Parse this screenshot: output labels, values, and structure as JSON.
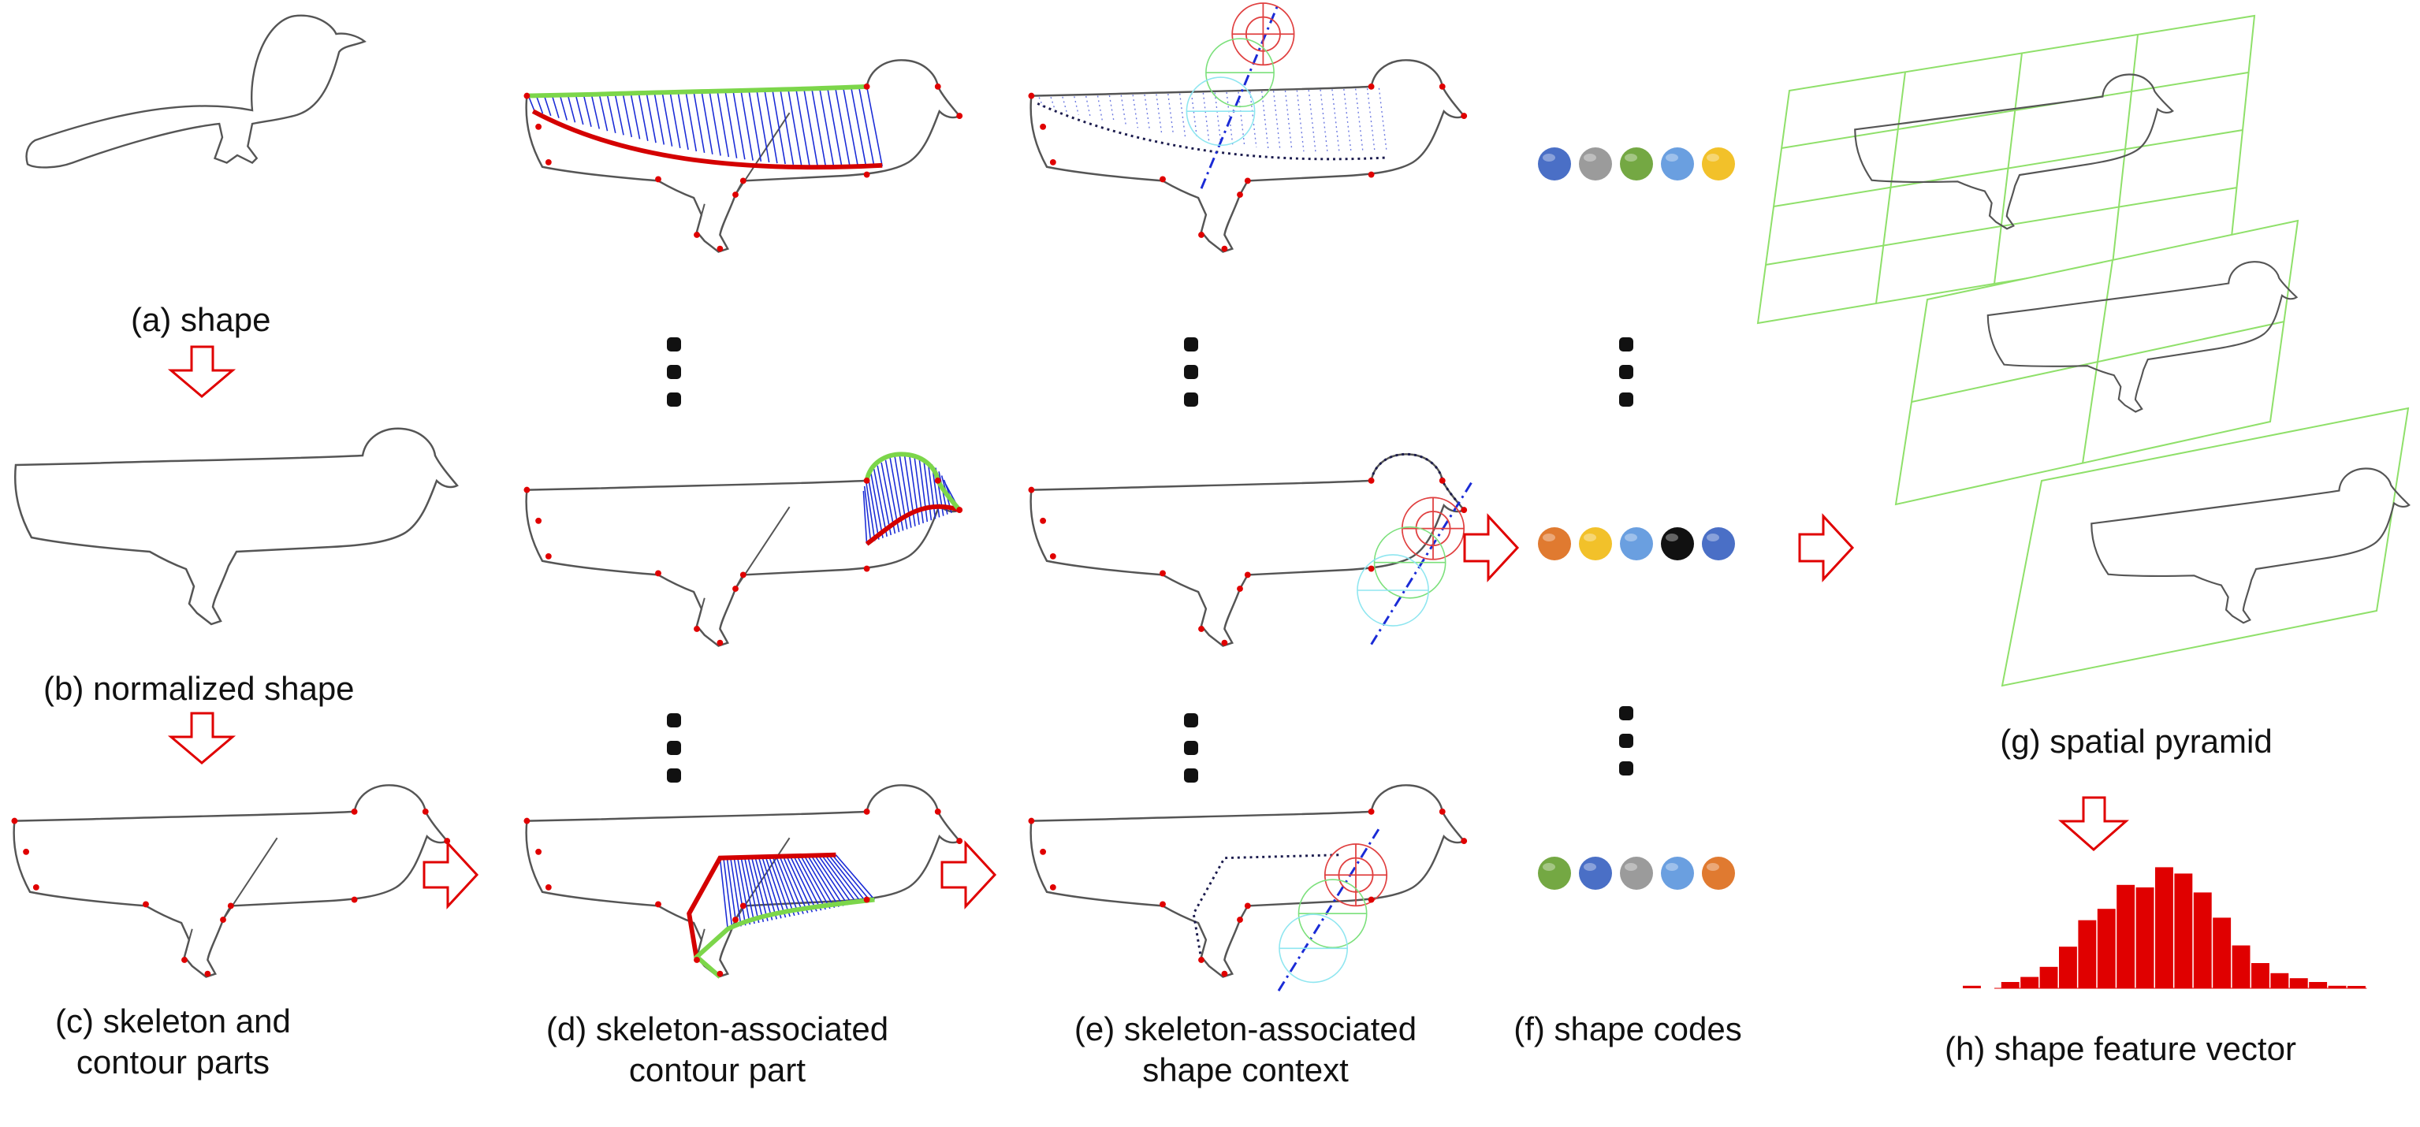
{
  "labels": {
    "a": "(a) shape",
    "b": "(b) normalized shape",
    "c_line1": "(c) skeleton and",
    "c_line2": "contour parts",
    "d_line1": "(d) skeleton-associated",
    "d_line2": "contour part",
    "e_line1": "(e) skeleton-associated",
    "e_line2": "shape context",
    "f": "(f) shape codes",
    "g": "(g) spatial pyramid",
    "h": "(h) shape feature vector"
  },
  "colors": {
    "outline": "#555555",
    "highlight_part": "#d40000",
    "contour_part": "#7cd64a",
    "association_lines": "#1a2bd6",
    "arrow": "#e00000",
    "skeleton_point": "#e00000",
    "grid": "#8fe06a",
    "bar": "#e00000"
  },
  "shape_codes": {
    "row_top": [
      "blue-code",
      "gray-code",
      "green-code",
      "lightblue-code",
      "yellow-code"
    ],
    "row_middle": [
      "orange-code",
      "yellow-code",
      "lightblue-code",
      "black-code",
      "blue-code"
    ],
    "row_bottom": [
      "green-code",
      "blue-code",
      "gray-code",
      "lightblue-code",
      "orange-code"
    ],
    "palette": {
      "blue-code": "#4a6fc6",
      "gray-code": "#9b9b9b",
      "green-code": "#74a843",
      "lightblue-code": "#6a9fe0",
      "yellow-code": "#f2c12a",
      "orange-code": "#e07a30",
      "black-code": "#111111"
    }
  },
  "histogram": {
    "values": [
      0.02,
      0,
      0.05,
      0.09,
      0.17,
      0.33,
      0.54,
      0.63,
      0.82,
      0.8,
      0.96,
      0.91,
      0.76,
      0.56,
      0.34,
      0.2,
      0.12,
      0.08,
      0.05,
      0.02,
      0.01
    ]
  }
}
